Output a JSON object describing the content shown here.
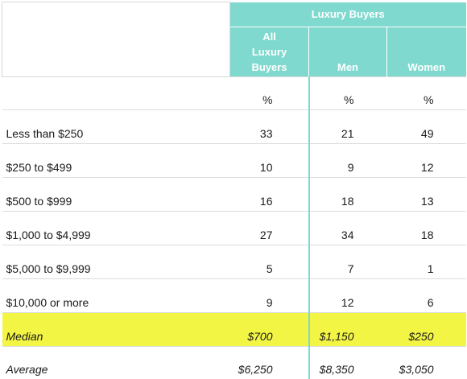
{
  "table": {
    "group_header": "Luxury Buyers",
    "columns": [
      "All Luxury Buyers",
      "Men",
      "Women"
    ],
    "column_lines": [
      [
        "All",
        "Luxury",
        "Buyers"
      ]
    ],
    "units_row": [
      "%",
      "%",
      "%"
    ],
    "rows": [
      {
        "label": "Less than $250",
        "values": [
          "33",
          "21",
          "49"
        ]
      },
      {
        "label": "$250 to $499",
        "values": [
          "10",
          "9",
          "12"
        ]
      },
      {
        "label": "$500 to $999",
        "values": [
          "16",
          "18",
          "13"
        ]
      },
      {
        "label": "$1,000 to $4,999",
        "values": [
          "27",
          "34",
          "18"
        ]
      },
      {
        "label": "$5,000 to $9,999",
        "values": [
          "5",
          "7",
          "1"
        ]
      },
      {
        "label": "$10,000 or more",
        "values": [
          "9",
          "12",
          "6"
        ]
      }
    ],
    "median": {
      "label": "Median",
      "values": [
        "$700",
        "$1,150",
        "$250"
      ]
    },
    "average": {
      "label": "Average",
      "values": [
        "$6,250",
        "$8,350",
        "$3,050"
      ]
    }
  },
  "colors": {
    "header": "#7fd9cf",
    "median_highlight": "#f3f545"
  }
}
